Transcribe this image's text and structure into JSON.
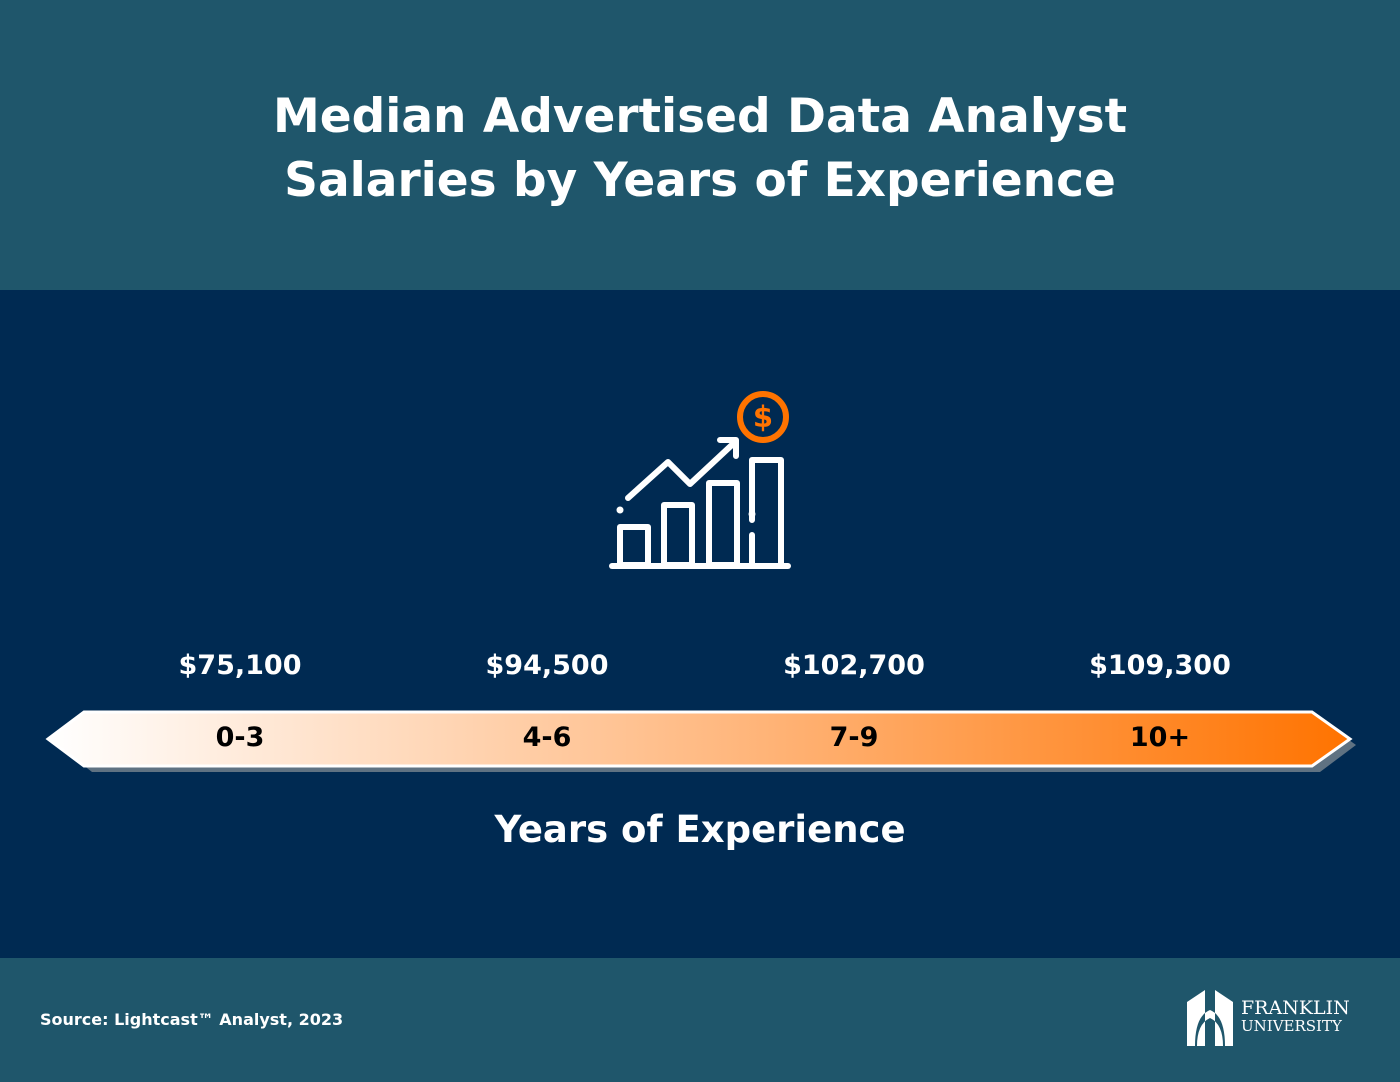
{
  "title_line1": "Median Advertised Data Analyst",
  "title_line2": "Salaries by Years of Experience",
  "chart_data": {
    "type": "table",
    "categories": [
      "0-3",
      "4-6",
      "7-9",
      "10+"
    ],
    "values": [
      75100,
      94500,
      102700,
      109300
    ],
    "value_labels": [
      "$75,100",
      "$94,500",
      "$102,700",
      "$109,300"
    ],
    "xlabel": "Years of Experience"
  },
  "colors": {
    "header": "#1f566b",
    "body": "#002a52",
    "accent": "#ff7300"
  },
  "icon": "growth-chart-dollar-icon",
  "source": "Source: Lightcast™ Analyst, 2023",
  "logo": {
    "line1": "FRANKLIN",
    "line2": "UNIVERSITY"
  }
}
